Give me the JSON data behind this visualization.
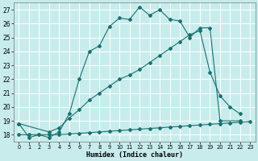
{
  "xlabel": "Humidex (Indice chaleur)",
  "xlim": [
    -0.5,
    23.5
  ],
  "ylim": [
    17.5,
    27.5
  ],
  "yticks": [
    18,
    19,
    20,
    21,
    22,
    23,
    24,
    25,
    26,
    27
  ],
  "xticks": [
    0,
    1,
    2,
    3,
    4,
    5,
    6,
    7,
    8,
    9,
    10,
    11,
    12,
    13,
    14,
    15,
    16,
    17,
    18,
    19,
    20,
    21,
    22,
    23
  ],
  "bg_color": "#c8ecec",
  "line_color": "#1a7070",
  "grid_color": "#ffffff",
  "series": [
    {
      "x": [
        0,
        1,
        2,
        3,
        4,
        5,
        6,
        7,
        8,
        9,
        10,
        11,
        12,
        13,
        14,
        15,
        16,
        17,
        18,
        19,
        20,
        22
      ],
      "y": [
        18.8,
        17.8,
        18.0,
        17.8,
        18.2,
        19.5,
        22.0,
        24.0,
        24.4,
        25.8,
        26.4,
        26.3,
        27.2,
        26.6,
        27.0,
        26.3,
        26.2,
        25.0,
        25.7,
        25.7,
        19.0,
        19.0
      ]
    },
    {
      "x": [
        0,
        1,
        2,
        3,
        4,
        5,
        6,
        7,
        8,
        9,
        10,
        11,
        12,
        13,
        14,
        15,
        16,
        17,
        18,
        19,
        20,
        21,
        22,
        23
      ],
      "y": [
        18.0,
        18.0,
        18.0,
        18.0,
        18.0,
        18.05,
        18.1,
        18.15,
        18.2,
        18.25,
        18.3,
        18.35,
        18.4,
        18.45,
        18.5,
        18.55,
        18.6,
        18.65,
        18.7,
        18.75,
        18.8,
        18.85,
        18.9,
        18.95
      ]
    },
    {
      "x": [
        0,
        3,
        4,
        5,
        6,
        7,
        8,
        9,
        10,
        11,
        12,
        13,
        14,
        15,
        16,
        17,
        18,
        19,
        20,
        21,
        22
      ],
      "y": [
        18.8,
        18.2,
        18.5,
        19.2,
        19.8,
        20.5,
        21.0,
        21.5,
        22.0,
        22.3,
        22.7,
        23.2,
        23.7,
        24.2,
        24.7,
        25.2,
        25.5,
        22.5,
        20.8,
        20.0,
        19.5
      ]
    }
  ]
}
